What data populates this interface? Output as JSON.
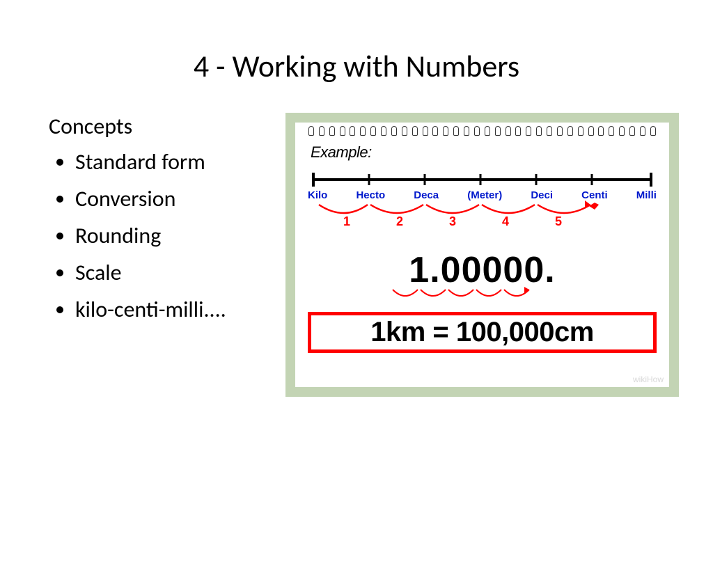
{
  "slide": {
    "title": "4 - Working with Numbers",
    "concepts_heading": "Concepts",
    "bullets": [
      "Standard form",
      "Conversion",
      "Rounding",
      "Scale",
      "kilo-centi-milli...."
    ]
  },
  "diagram": {
    "frame_bg": "#c3d4b4",
    "notepad_bg": "#ffffff",
    "spiral_count": 34,
    "example_label": "Example:",
    "number_line": {
      "line_color": "#000000",
      "tick_count": 7,
      "prefix_labels": [
        "Kilo",
        "Hecto",
        "Deca",
        "(Meter)",
        "Deci",
        "Centi",
        "Milli"
      ],
      "prefix_color": "#0018cc",
      "arc_color": "#ff0000",
      "arc_numbers": [
        "1",
        "2",
        "3",
        "4",
        "5"
      ],
      "arc_number_color": "#ff0000"
    },
    "big_number": "1.00000.",
    "decimal_arc_color": "#ff0000",
    "result_box": {
      "border_color": "#ff0000",
      "text": "1km = 100,000cm"
    },
    "watermark": "wikiHow"
  },
  "colors": {
    "text": "#000000",
    "background": "#ffffff"
  }
}
